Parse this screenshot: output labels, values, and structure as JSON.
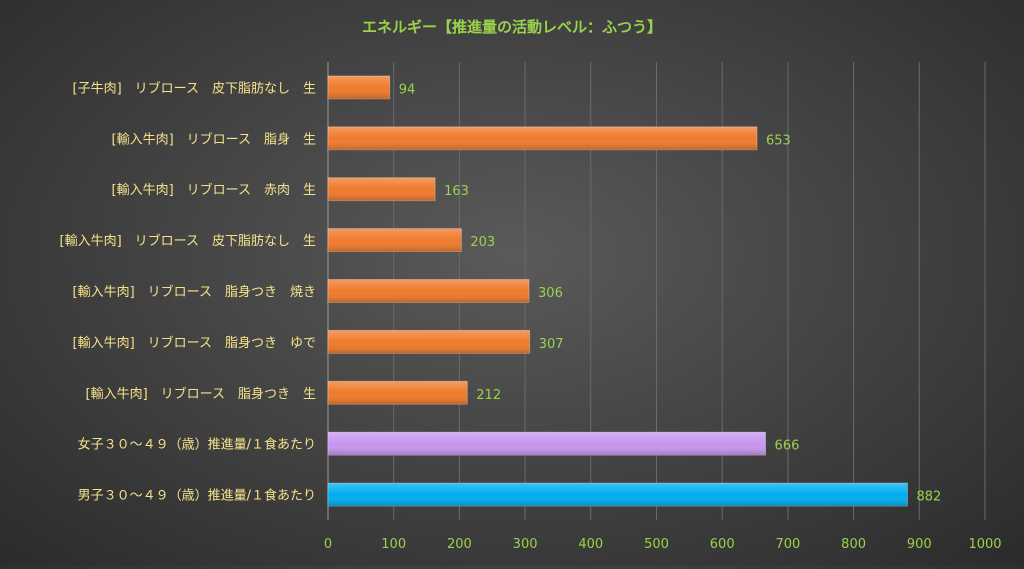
{
  "chart_data": {
    "type": "bar",
    "orientation": "horizontal",
    "title": "エネルギー【推進量の活動レベル：ふつう】",
    "categories": [
      "[子牛肉]　リブロース　皮下脂肪なし　生",
      "[輸入牛肉]　リブロース　脂身　生",
      "[輸入牛肉]　リブロース　赤肉　生",
      "[輸入牛肉]　リブロース　皮下脂肪なし　生",
      "[輸入牛肉]　リブロース　脂身つき　焼き",
      "[輸入牛肉]　リブロース　脂身つき　ゆで",
      "[輸入牛肉]　リブロース　脂身つき　生",
      "女子３０～４９（歳）推進量/１食あたり",
      "男子３０～４９（歳）推進量/１食あたり"
    ],
    "values": [
      94,
      653,
      163,
      203,
      306,
      307,
      212,
      666,
      882
    ],
    "bar_colors": [
      "#f07a2c",
      "#f07a2c",
      "#f07a2c",
      "#f07a2c",
      "#f07a2c",
      "#f07a2c",
      "#f07a2c",
      "#c896f0",
      "#00aeef"
    ],
    "xlim": [
      0,
      1000
    ],
    "x_ticks": [
      "0",
      "100",
      "200",
      "300",
      "400",
      "500",
      "600",
      "700",
      "800",
      "900",
      "1000"
    ],
    "grid": true,
    "legend": "none",
    "xlabel": "",
    "ylabel": ""
  },
  "colors": {
    "title": "#9bd24b",
    "category_label": "#f5e28a",
    "value_label": "#9bd24b",
    "tick_label": "#9bd24b",
    "grid": "#6a6a6a",
    "axis": "#9a9a9a"
  }
}
